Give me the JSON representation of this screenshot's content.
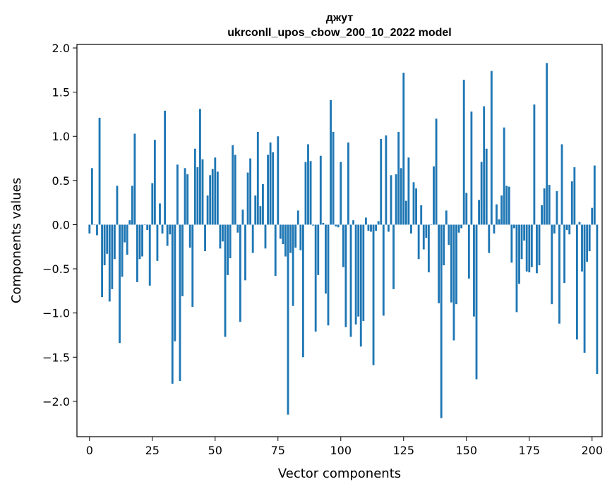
{
  "chart_data": {
    "type": "bar",
    "title_line1": "джут",
    "title_line2": "ukrconll_upos_cbow_200_10_2022 model",
    "xlabel": "Vector components",
    "ylabel": "Components values",
    "xlim": [
      -5,
      204
    ],
    "ylim": [
      -2.4,
      2.04
    ],
    "xticks": [
      0,
      25,
      50,
      75,
      100,
      125,
      150,
      175,
      200
    ],
    "yticks": [
      2.0,
      1.5,
      1.0,
      0.5,
      0.0,
      -0.5,
      -1.0,
      -1.5,
      -2.0
    ],
    "ytick_labels": [
      "2.0",
      "1.5",
      "1.0",
      "0.5",
      "0.0",
      "−0.5",
      "−1.0",
      "−1.5",
      "−2.0"
    ],
    "grid": false,
    "bar_color": "#1f77b4",
    "values": [
      -0.1,
      0.64,
      0.0,
      -0.12,
      1.21,
      -0.82,
      -0.46,
      -0.33,
      -0.87,
      -0.73,
      -0.39,
      0.44,
      -1.34,
      -0.59,
      -0.2,
      -0.34,
      0.05,
      0.44,
      1.03,
      -0.65,
      -0.39,
      -0.36,
      0.0,
      -0.06,
      -0.69,
      0.47,
      0.96,
      -0.41,
      0.24,
      -0.1,
      1.29,
      -0.24,
      -0.11,
      -1.8,
      -1.32,
      0.68,
      -1.77,
      -0.81,
      0.64,
      0.57,
      -0.26,
      -0.93,
      0.86,
      0.65,
      1.31,
      0.74,
      -0.3,
      0.33,
      0.56,
      0.63,
      0.76,
      0.6,
      -0.27,
      -0.19,
      -1.27,
      -0.57,
      -0.38,
      0.9,
      0.79,
      -0.09,
      -1.1,
      0.17,
      -0.63,
      0.59,
      0.75,
      -0.32,
      0.33,
      1.05,
      0.21,
      0.46,
      -0.27,
      0.79,
      0.93,
      0.82,
      -0.58,
      1.0,
      -0.16,
      -0.22,
      -0.36,
      -2.15,
      -0.32,
      -0.92,
      -0.26,
      0.16,
      -0.29,
      -1.5,
      0.71,
      0.91,
      0.72,
      -0.01,
      -1.21,
      -0.57,
      0.78,
      0.02,
      -0.78,
      -1.14,
      1.41,
      1.05,
      -0.02,
      -0.03,
      0.71,
      -0.48,
      -1.16,
      0.93,
      -1.27,
      0.05,
      -1.13,
      -1.04,
      -1.38,
      -1.09,
      0.08,
      -0.07,
      -0.08,
      -1.59,
      -0.07,
      0.04,
      0.97,
      -1.03,
      1.01,
      -0.08,
      0.56,
      -0.73,
      0.57,
      1.05,
      0.64,
      1.72,
      0.27,
      0.76,
      -0.1,
      0.48,
      0.41,
      -0.39,
      0.22,
      -0.28,
      -0.15,
      -0.54,
      0.0,
      0.66,
      1.2,
      -0.89,
      -2.19,
      -0.46,
      0.16,
      -0.23,
      -0.88,
      -1.31,
      -0.9,
      -0.09,
      -0.04,
      1.64,
      0.36,
      -0.61,
      1.28,
      -1.04,
      -1.75,
      0.28,
      0.71,
      1.34,
      0.86,
      -0.32,
      1.74,
      -0.1,
      0.23,
      0.06,
      0.33,
      1.1,
      0.44,
      0.43,
      -0.43,
      -0.04,
      -0.99,
      -0.67,
      -0.39,
      -0.18,
      -0.53,
      -0.54,
      -0.48,
      1.36,
      -0.55,
      -0.46,
      0.22,
      0.41,
      1.83,
      0.45,
      -0.9,
      -0.1,
      0.38,
      -1.12,
      0.91,
      -0.66,
      -0.06,
      -0.11,
      0.49,
      0.65,
      -1.3,
      0.03,
      -0.53,
      -1.45,
      -0.42,
      -0.3,
      0.19,
      0.67,
      -1.69
    ]
  }
}
